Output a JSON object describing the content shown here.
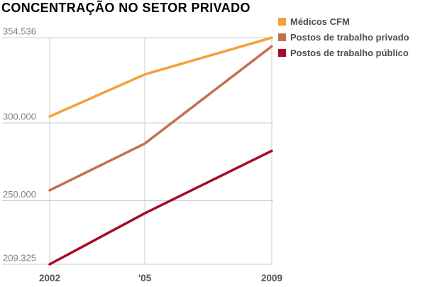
{
  "title": "CONCENTRAÇÃO NO SETOR PRIVADO",
  "chart_data": {
    "type": "line",
    "x": [
      2002,
      2005,
      2009
    ],
    "x_tick_labels": [
      "2002",
      "'05",
      "2009"
    ],
    "xlim": [
      2002,
      2009
    ],
    "ylim": [
      209325,
      354536
    ],
    "y_ticks": [
      {
        "value": 354536,
        "label": "354.536"
      },
      {
        "value": 300000,
        "label": "300.000"
      },
      {
        "value": 250000,
        "label": "250.000"
      },
      {
        "value": 209325,
        "label": "209.325"
      }
    ],
    "series": [
      {
        "name": "Médicos CFM",
        "color": "#F2A236",
        "values": [
          304000,
          331000,
          354536
        ]
      },
      {
        "name": "Postos de trabalho privado",
        "color": "#C3704E",
        "values": [
          256700,
          286700,
          349000
        ]
      },
      {
        "name": "Postos de trabalho público",
        "color": "#A30C2B",
        "values": [
          209325,
          242000,
          282000
        ]
      }
    ],
    "grid": true,
    "legend_position": "top-right"
  }
}
